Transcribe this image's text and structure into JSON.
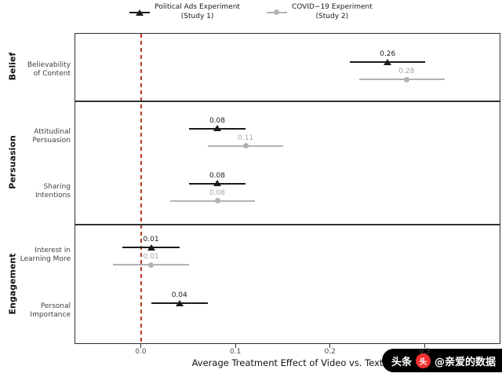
{
  "legend": {
    "items": [
      {
        "name": "study1",
        "marker": "triangle",
        "color": "#1a1a1a",
        "lines": [
          "Political Ads Experiment",
          "(Study 1)"
        ]
      },
      {
        "name": "study2",
        "marker": "circle",
        "color": "#b3b3b3",
        "lines": [
          "COVID−19 Experiment",
          "(Study 2)"
        ]
      }
    ]
  },
  "chart_data": {
    "type": "pointrange-forest",
    "title": "",
    "xlabel": "Average Treatment Effect of Video vs. Text",
    "xlim": [
      -0.07,
      0.38
    ],
    "x_ticks": [
      0,
      0.1,
      0.2,
      0.3
    ],
    "reference_line_x": 0,
    "reference_line_color": "#c0392b",
    "grid": false,
    "legend_position": "top",
    "series_styles": [
      {
        "study": "Political Ads Experiment (Study 1)",
        "marker": "triangle",
        "color": "#1a1a1a",
        "label_color": "#1a1a1a"
      },
      {
        "study": "COVID−19 Experiment (Study 2)",
        "marker": "circle",
        "color": "#b3b3b3",
        "label_color": "#a6a6a6"
      }
    ],
    "groups": [
      {
        "name": "Belief",
        "outcomes": [
          {
            "label": [
              "Believability",
              "of Content"
            ],
            "estimates": [
              {
                "value": 0.26,
                "ci_low": 0.22,
                "ci_high": 0.3
              },
              {
                "value": 0.28,
                "ci_low": 0.23,
                "ci_high": 0.32
              }
            ]
          }
        ]
      },
      {
        "name": "Persuasion",
        "outcomes": [
          {
            "label": [
              "Attitudinal",
              "Persuasion"
            ],
            "estimates": [
              {
                "value": 0.08,
                "ci_low": 0.05,
                "ci_high": 0.11
              },
              {
                "value": 0.11,
                "ci_low": 0.07,
                "ci_high": 0.15
              }
            ]
          },
          {
            "label": [
              "Sharing",
              "Intentions"
            ],
            "estimates": [
              {
                "value": 0.08,
                "ci_low": 0.05,
                "ci_high": 0.11
              },
              {
                "value": 0.08,
                "ci_low": 0.03,
                "ci_high": 0.12
              }
            ]
          }
        ]
      },
      {
        "name": "Engagement",
        "outcomes": [
          {
            "label": [
              "Interest in",
              "Learning More"
            ],
            "estimates": [
              {
                "value": 0.01,
                "ci_low": -0.02,
                "ci_high": 0.04
              },
              {
                "value": 0.01,
                "ci_low": -0.03,
                "ci_high": 0.05
              }
            ]
          },
          {
            "label": [
              "Personal",
              "Importance"
            ],
            "estimates": [
              {
                "value": 0.04,
                "ci_low": 0.01,
                "ci_high": 0.07
              }
            ]
          }
        ]
      }
    ]
  },
  "watermark": {
    "prefix": "头条",
    "logo_glyph": "头",
    "handle": "@亲爱的数据"
  }
}
